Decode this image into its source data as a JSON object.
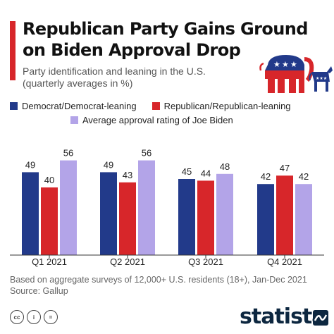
{
  "title": "Republican Party Gains Ground on Biden Approval Drop",
  "subtitle": "Party identification and leaning in the U.S. (quarterly averages in %)",
  "colors": {
    "democrat": "#223a8a",
    "republican": "#d7262a",
    "approval": "#b3a4e8",
    "accent": "#d7262a",
    "brand": "#0d2740"
  },
  "logo_icon": "gop-elephant-dem-donkey-icon",
  "legend": [
    {
      "label": "Democrat/Democrat-leaning",
      "color": "#223a8a"
    },
    {
      "label": "Republican/Republican-leaning",
      "color": "#d7262a"
    },
    {
      "label": "Average approval rating of Joe Biden",
      "color": "#b3a4e8"
    }
  ],
  "chart_data": {
    "type": "bar",
    "categories": [
      "Q1 2021",
      "Q2 2021",
      "Q3 2021",
      "Q4 2021"
    ],
    "series": [
      {
        "name": "Democrat/Democrat-leaning",
        "values": [
          49,
          49,
          45,
          42
        ],
        "color": "#223a8a"
      },
      {
        "name": "Republican/Republican-leaning",
        "values": [
          40,
          43,
          44,
          47
        ],
        "color": "#d7262a"
      },
      {
        "name": "Average approval rating of Joe Biden",
        "values": [
          56,
          56,
          48,
          42
        ],
        "color": "#b3a4e8"
      }
    ],
    "ylim": [
      0,
      60
    ],
    "grid": false,
    "legend_position": "top"
  },
  "note": {
    "line1": "Based on aggregate surveys of 12,000+ U.S. residents (18+), Jan-Dec 2021",
    "line2": "Source: Gallup"
  },
  "footer": {
    "brand": "statista",
    "cc_icons": [
      "cc",
      "i",
      "="
    ]
  }
}
